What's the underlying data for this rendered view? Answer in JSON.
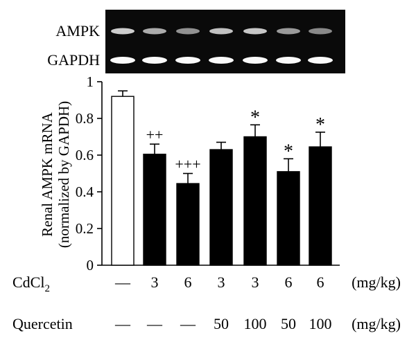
{
  "blot": {
    "labels": [
      "AMPK",
      "GAPDH"
    ],
    "ampk_band_intensity": [
      0.85,
      0.65,
      0.5,
      0.78,
      0.82,
      0.55,
      0.45
    ],
    "gapdh_band_intensity": [
      1,
      1,
      1,
      1,
      1,
      1,
      1
    ]
  },
  "chart_data": {
    "type": "bar",
    "ylabel_line1": "Renal AMPK mRNA",
    "ylabel_line2": "(normalized by GAPDH)",
    "ylim": [
      0,
      1
    ],
    "yticks": [
      0,
      0.2,
      0.4,
      0.6,
      0.8,
      1
    ],
    "ytick_labels": [
      "0",
      "0.2",
      "0.4",
      "0.6",
      "0.8",
      "1"
    ],
    "values": [
      0.92,
      0.605,
      0.445,
      0.63,
      0.7,
      0.51,
      0.645
    ],
    "errors": [
      0.03,
      0.055,
      0.055,
      0.04,
      0.065,
      0.07,
      0.08
    ],
    "fill": [
      "#ffffff",
      "#000000",
      "#000000",
      "#000000",
      "#000000",
      "#000000",
      "#000000"
    ],
    "annotations": [
      "",
      "++",
      "+++",
      "",
      "*",
      "*",
      "*"
    ],
    "rows": [
      {
        "label": "CdCl",
        "label_sub": "2",
        "values": [
          "—",
          "3",
          "6",
          "3",
          "3",
          "6",
          "6"
        ],
        "unit": "(mg/kg)"
      },
      {
        "label": "Quercetin",
        "label_sub": "",
        "values": [
          "—",
          "—",
          "—",
          "50",
          "100",
          "50",
          "100"
        ],
        "unit": "(mg/kg)"
      }
    ]
  }
}
